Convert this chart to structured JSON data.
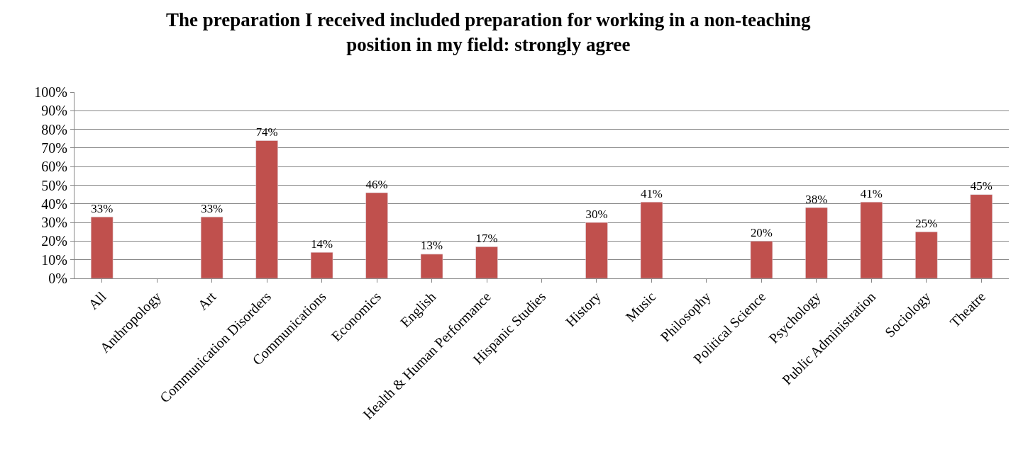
{
  "chart_data": {
    "type": "bar",
    "title": "The preparation I received included preparation for working in a non-teaching\nposition in my field: strongly agree",
    "categories": [
      "All",
      "Anthropology",
      "Art",
      "Communication Disorders",
      "Communications",
      "Economics",
      "English",
      "Health & Human Performance",
      "Hispanic Studies",
      "History",
      "Music",
      "Philosophy",
      "Political Science",
      "Psychology",
      "Public Administration",
      "Sociology",
      "Theatre"
    ],
    "values": [
      33,
      null,
      33,
      74,
      14,
      46,
      13,
      17,
      null,
      30,
      41,
      null,
      20,
      38,
      41,
      25,
      45
    ],
    "value_labels": [
      "33%",
      null,
      "33%",
      "74%",
      "14%",
      "46%",
      "13%",
      "17%",
      null,
      "30%",
      "41%",
      null,
      "20%",
      "38%",
      "41%",
      "25%",
      "45%"
    ],
    "color": "#c0504d",
    "ylim": [
      0,
      100
    ],
    "yticks": [
      {
        "value": 0,
        "label": "0%"
      },
      {
        "value": 10,
        "label": "10%"
      },
      {
        "value": 20,
        "label": "20%"
      },
      {
        "value": 30,
        "label": "30%"
      },
      {
        "value": 40,
        "label": "40%"
      },
      {
        "value": 50,
        "label": "50%"
      },
      {
        "value": 60,
        "label": "60%"
      },
      {
        "value": 70,
        "label": "70%"
      },
      {
        "value": 80,
        "label": "80%"
      },
      {
        "value": 90,
        "label": "90%"
      },
      {
        "value": 100,
        "label": "100%"
      }
    ],
    "grid": "y",
    "legend": false
  }
}
